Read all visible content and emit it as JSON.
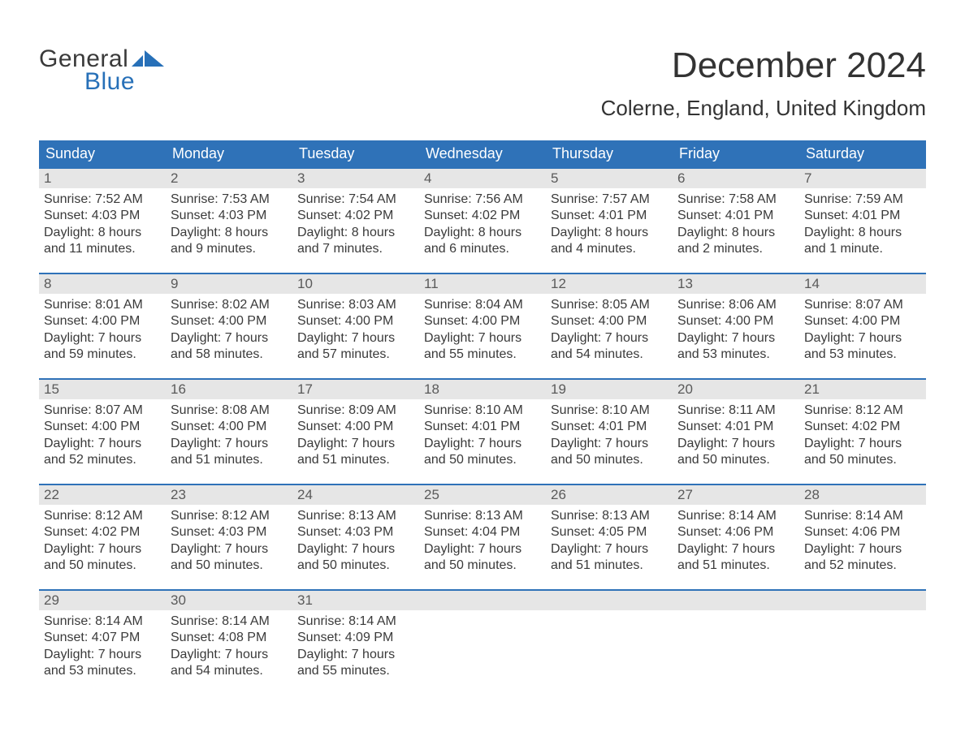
{
  "logo": {
    "word1": "General",
    "word2": "Blue",
    "word1_color": "#3a3a3a",
    "word2_color": "#2770b8",
    "flag_color": "#2770b8"
  },
  "title": "December 2024",
  "location": "Colerne, England, United Kingdom",
  "colors": {
    "header_bg": "#2f72b8",
    "header_text": "#ffffff",
    "row_border": "#2f72b8",
    "daynum_bg": "#e6e6e6",
    "daynum_text": "#5a5a5a",
    "body_text": "#3a3a3a",
    "page_bg": "#ffffff"
  },
  "typography": {
    "title_fontsize": 44,
    "location_fontsize": 26,
    "header_fontsize": 18,
    "daynum_fontsize": 17,
    "body_fontsize": 16,
    "font_family": "Arial"
  },
  "layout": {
    "columns": 7,
    "rows": 5,
    "cell_min_height": 128,
    "row_border_width": 2
  },
  "weekdays": [
    "Sunday",
    "Monday",
    "Tuesday",
    "Wednesday",
    "Thursday",
    "Friday",
    "Saturday"
  ],
  "weeks": [
    [
      {
        "day": "1",
        "sunrise": "Sunrise: 7:52 AM",
        "sunset": "Sunset: 4:03 PM",
        "dl1": "Daylight: 8 hours",
        "dl2": "and 11 minutes."
      },
      {
        "day": "2",
        "sunrise": "Sunrise: 7:53 AM",
        "sunset": "Sunset: 4:03 PM",
        "dl1": "Daylight: 8 hours",
        "dl2": "and 9 minutes."
      },
      {
        "day": "3",
        "sunrise": "Sunrise: 7:54 AM",
        "sunset": "Sunset: 4:02 PM",
        "dl1": "Daylight: 8 hours",
        "dl2": "and 7 minutes."
      },
      {
        "day": "4",
        "sunrise": "Sunrise: 7:56 AM",
        "sunset": "Sunset: 4:02 PM",
        "dl1": "Daylight: 8 hours",
        "dl2": "and 6 minutes."
      },
      {
        "day": "5",
        "sunrise": "Sunrise: 7:57 AM",
        "sunset": "Sunset: 4:01 PM",
        "dl1": "Daylight: 8 hours",
        "dl2": "and 4 minutes."
      },
      {
        "day": "6",
        "sunrise": "Sunrise: 7:58 AM",
        "sunset": "Sunset: 4:01 PM",
        "dl1": "Daylight: 8 hours",
        "dl2": "and 2 minutes."
      },
      {
        "day": "7",
        "sunrise": "Sunrise: 7:59 AM",
        "sunset": "Sunset: 4:01 PM",
        "dl1": "Daylight: 8 hours",
        "dl2": "and 1 minute."
      }
    ],
    [
      {
        "day": "8",
        "sunrise": "Sunrise: 8:01 AM",
        "sunset": "Sunset: 4:00 PM",
        "dl1": "Daylight: 7 hours",
        "dl2": "and 59 minutes."
      },
      {
        "day": "9",
        "sunrise": "Sunrise: 8:02 AM",
        "sunset": "Sunset: 4:00 PM",
        "dl1": "Daylight: 7 hours",
        "dl2": "and 58 minutes."
      },
      {
        "day": "10",
        "sunrise": "Sunrise: 8:03 AM",
        "sunset": "Sunset: 4:00 PM",
        "dl1": "Daylight: 7 hours",
        "dl2": "and 57 minutes."
      },
      {
        "day": "11",
        "sunrise": "Sunrise: 8:04 AM",
        "sunset": "Sunset: 4:00 PM",
        "dl1": "Daylight: 7 hours",
        "dl2": "and 55 minutes."
      },
      {
        "day": "12",
        "sunrise": "Sunrise: 8:05 AM",
        "sunset": "Sunset: 4:00 PM",
        "dl1": "Daylight: 7 hours",
        "dl2": "and 54 minutes."
      },
      {
        "day": "13",
        "sunrise": "Sunrise: 8:06 AM",
        "sunset": "Sunset: 4:00 PM",
        "dl1": "Daylight: 7 hours",
        "dl2": "and 53 minutes."
      },
      {
        "day": "14",
        "sunrise": "Sunrise: 8:07 AM",
        "sunset": "Sunset: 4:00 PM",
        "dl1": "Daylight: 7 hours",
        "dl2": "and 53 minutes."
      }
    ],
    [
      {
        "day": "15",
        "sunrise": "Sunrise: 8:07 AM",
        "sunset": "Sunset: 4:00 PM",
        "dl1": "Daylight: 7 hours",
        "dl2": "and 52 minutes."
      },
      {
        "day": "16",
        "sunrise": "Sunrise: 8:08 AM",
        "sunset": "Sunset: 4:00 PM",
        "dl1": "Daylight: 7 hours",
        "dl2": "and 51 minutes."
      },
      {
        "day": "17",
        "sunrise": "Sunrise: 8:09 AM",
        "sunset": "Sunset: 4:00 PM",
        "dl1": "Daylight: 7 hours",
        "dl2": "and 51 minutes."
      },
      {
        "day": "18",
        "sunrise": "Sunrise: 8:10 AM",
        "sunset": "Sunset: 4:01 PM",
        "dl1": "Daylight: 7 hours",
        "dl2": "and 50 minutes."
      },
      {
        "day": "19",
        "sunrise": "Sunrise: 8:10 AM",
        "sunset": "Sunset: 4:01 PM",
        "dl1": "Daylight: 7 hours",
        "dl2": "and 50 minutes."
      },
      {
        "day": "20",
        "sunrise": "Sunrise: 8:11 AM",
        "sunset": "Sunset: 4:01 PM",
        "dl1": "Daylight: 7 hours",
        "dl2": "and 50 minutes."
      },
      {
        "day": "21",
        "sunrise": "Sunrise: 8:12 AM",
        "sunset": "Sunset: 4:02 PM",
        "dl1": "Daylight: 7 hours",
        "dl2": "and 50 minutes."
      }
    ],
    [
      {
        "day": "22",
        "sunrise": "Sunrise: 8:12 AM",
        "sunset": "Sunset: 4:02 PM",
        "dl1": "Daylight: 7 hours",
        "dl2": "and 50 minutes."
      },
      {
        "day": "23",
        "sunrise": "Sunrise: 8:12 AM",
        "sunset": "Sunset: 4:03 PM",
        "dl1": "Daylight: 7 hours",
        "dl2": "and 50 minutes."
      },
      {
        "day": "24",
        "sunrise": "Sunrise: 8:13 AM",
        "sunset": "Sunset: 4:03 PM",
        "dl1": "Daylight: 7 hours",
        "dl2": "and 50 minutes."
      },
      {
        "day": "25",
        "sunrise": "Sunrise: 8:13 AM",
        "sunset": "Sunset: 4:04 PM",
        "dl1": "Daylight: 7 hours",
        "dl2": "and 50 minutes."
      },
      {
        "day": "26",
        "sunrise": "Sunrise: 8:13 AM",
        "sunset": "Sunset: 4:05 PM",
        "dl1": "Daylight: 7 hours",
        "dl2": "and 51 minutes."
      },
      {
        "day": "27",
        "sunrise": "Sunrise: 8:14 AM",
        "sunset": "Sunset: 4:06 PM",
        "dl1": "Daylight: 7 hours",
        "dl2": "and 51 minutes."
      },
      {
        "day": "28",
        "sunrise": "Sunrise: 8:14 AM",
        "sunset": "Sunset: 4:06 PM",
        "dl1": "Daylight: 7 hours",
        "dl2": "and 52 minutes."
      }
    ],
    [
      {
        "day": "29",
        "sunrise": "Sunrise: 8:14 AM",
        "sunset": "Sunset: 4:07 PM",
        "dl1": "Daylight: 7 hours",
        "dl2": "and 53 minutes."
      },
      {
        "day": "30",
        "sunrise": "Sunrise: 8:14 AM",
        "sunset": "Sunset: 4:08 PM",
        "dl1": "Daylight: 7 hours",
        "dl2": "and 54 minutes."
      },
      {
        "day": "31",
        "sunrise": "Sunrise: 8:14 AM",
        "sunset": "Sunset: 4:09 PM",
        "dl1": "Daylight: 7 hours",
        "dl2": "and 55 minutes."
      },
      null,
      null,
      null,
      null
    ]
  ]
}
